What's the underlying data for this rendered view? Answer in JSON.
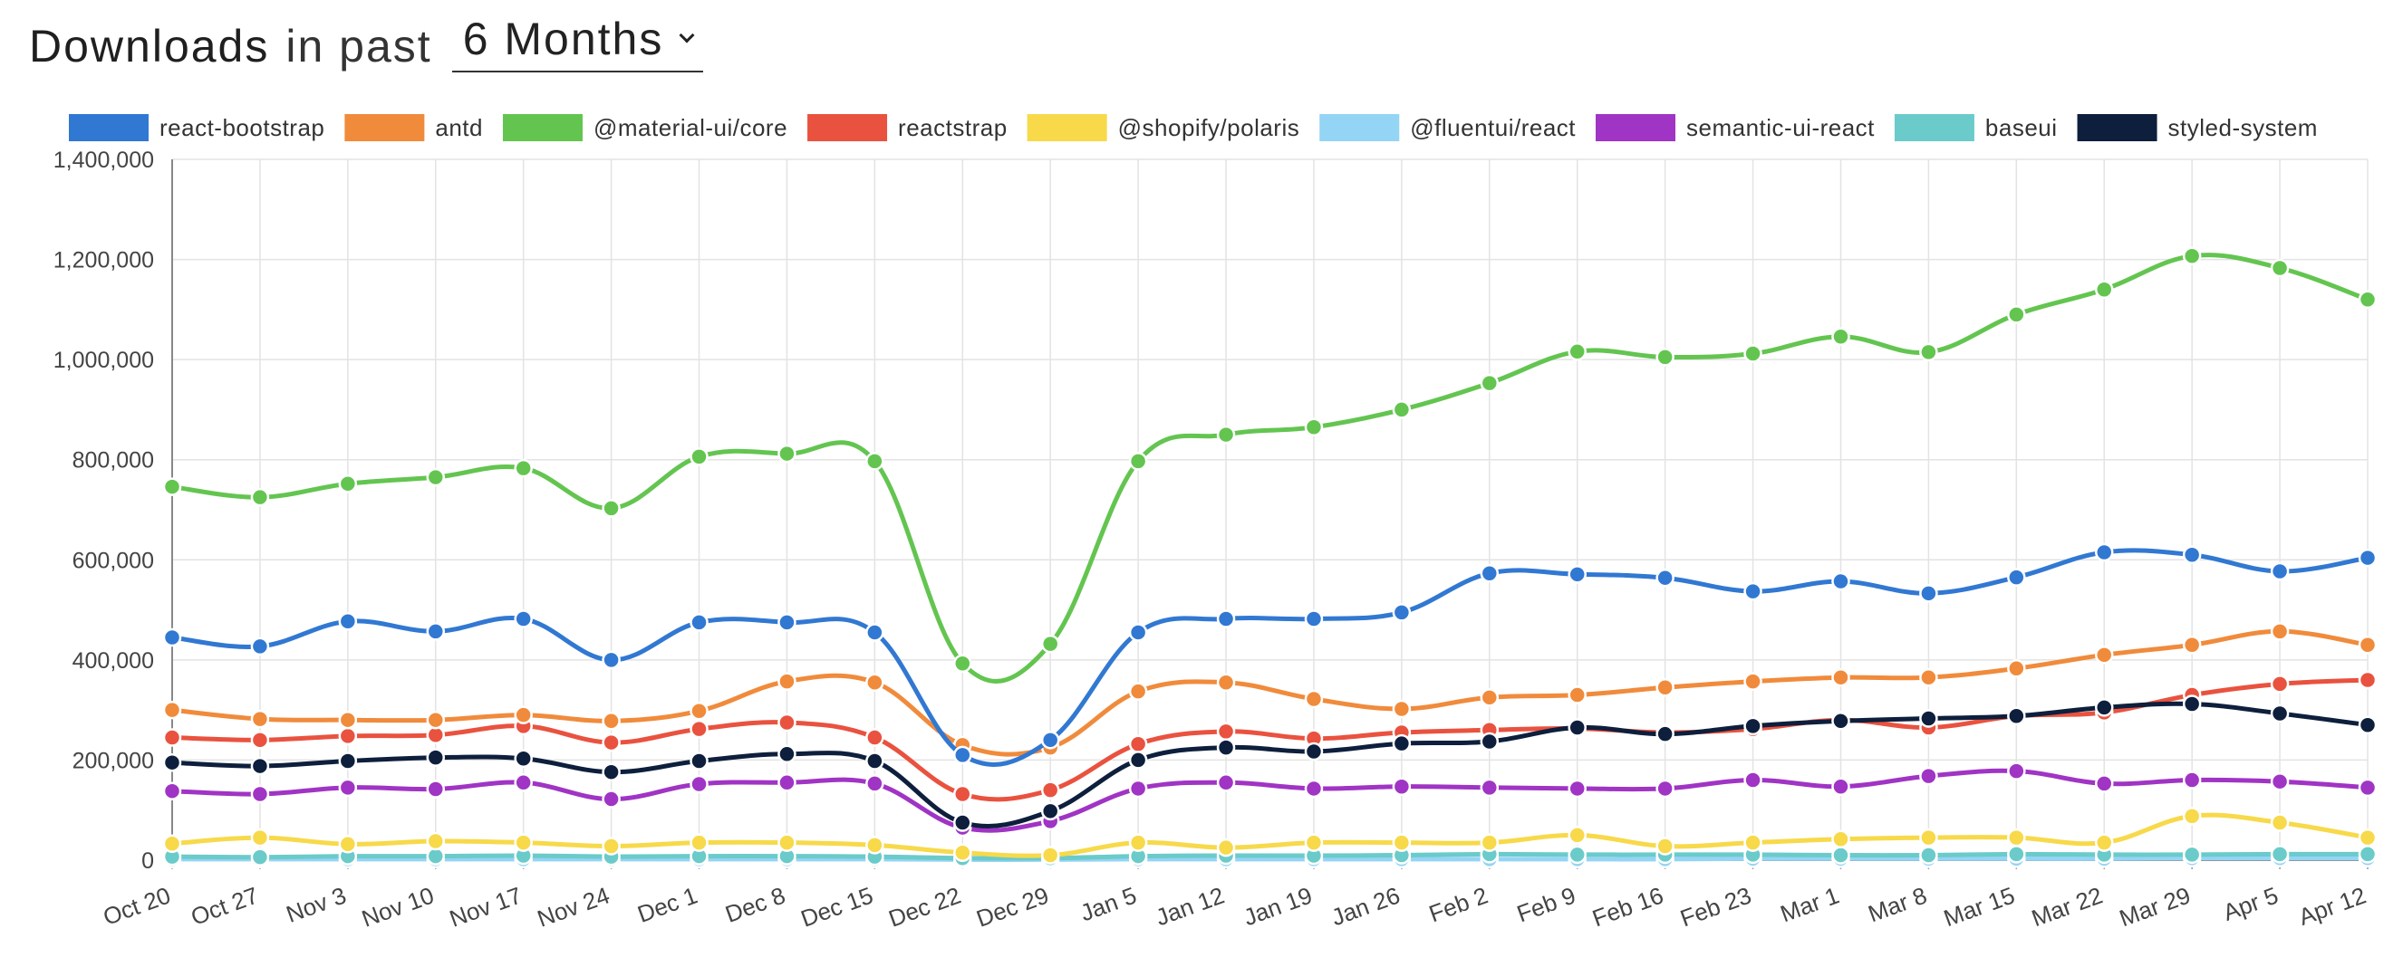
{
  "header": {
    "title_strong": "Downloads",
    "title_light": "in past",
    "period_value": "6 Months"
  },
  "chart_data": {
    "type": "line",
    "title": "Downloads in past 6 Months",
    "xlabel": "",
    "ylabel": "",
    "ylim": [
      0,
      1400000
    ],
    "yticks": [
      0,
      200000,
      400000,
      600000,
      800000,
      1000000,
      1200000,
      1400000
    ],
    "ytick_labels": [
      "0",
      "200,000",
      "400,000",
      "600,000",
      "800,000",
      "1,000,000",
      "1,200,000",
      "1,400,000"
    ],
    "grid": true,
    "legend_position": "top",
    "categories": [
      "Oct 20",
      "Oct 27",
      "Nov 3",
      "Nov 10",
      "Nov 17",
      "Nov 24",
      "Dec 1",
      "Dec 8",
      "Dec 15",
      "Dec 22",
      "Dec 29",
      "Jan 5",
      "Jan 12",
      "Jan 19",
      "Jan 26",
      "Feb 2",
      "Feb 9",
      "Feb 16",
      "Feb 23",
      "Mar 1",
      "Mar 8",
      "Mar 15",
      "Mar 22",
      "Mar 29",
      "Apr 5",
      "Apr 12"
    ],
    "series": [
      {
        "name": "react-bootstrap",
        "color": "#3178d2",
        "values": [
          445000,
          427000,
          477000,
          457000,
          482000,
          400000,
          475000,
          475000,
          455000,
          210000,
          240000,
          455000,
          482000,
          482000,
          495000,
          573000,
          571000,
          564000,
          537000,
          557000,
          533000,
          565000,
          615000,
          610000,
          577000,
          604000
        ]
      },
      {
        "name": "antd",
        "color": "#f08b3c",
        "values": [
          300000,
          282000,
          280000,
          280000,
          290000,
          278000,
          298000,
          357000,
          355000,
          230000,
          225000,
          337000,
          355000,
          322000,
          302000,
          325000,
          330000,
          345000,
          357000,
          365000,
          365000,
          383000,
          410000,
          430000,
          457000,
          430000
        ]
      },
      {
        "name": "@material-ui/core",
        "color": "#63c550",
        "values": [
          746000,
          725000,
          752000,
          765000,
          783000,
          703000,
          806000,
          812000,
          797000,
          393000,
          432000,
          797000,
          850000,
          865000,
          900000,
          953000,
          1016000,
          1005000,
          1012000,
          1046000,
          1015000,
          1090000,
          1140000,
          1207000,
          1183000,
          1120000
        ]
      },
      {
        "name": "reactstrap",
        "color": "#e9523f",
        "values": [
          245000,
          240000,
          248000,
          250000,
          268000,
          235000,
          262000,
          275000,
          245000,
          132000,
          140000,
          232000,
          257000,
          243000,
          255000,
          260000,
          263000,
          255000,
          262000,
          280000,
          265000,
          288000,
          295000,
          330000,
          352000,
          360000
        ]
      },
      {
        "name": "@shopify/polaris",
        "color": "#f7d94a",
        "values": [
          33000,
          45000,
          32000,
          38000,
          35000,
          28000,
          35000,
          35000,
          30000,
          15000,
          10000,
          35000,
          25000,
          35000,
          35000,
          35000,
          50000,
          28000,
          35000,
          42000,
          45000,
          45000,
          35000,
          88000,
          75000,
          45000
        ]
      },
      {
        "name": "@fluentui/react",
        "color": "#94d4f5",
        "values": [
          2000,
          2000,
          2000,
          2000,
          2000,
          2000,
          2000,
          2000,
          2000,
          1000,
          1000,
          2000,
          2000,
          2000,
          2000,
          2000,
          2000,
          2000,
          3000,
          3000,
          3000,
          3000,
          3000,
          4000,
          4000,
          4000
        ]
      },
      {
        "name": "semantic-ui-react",
        "color": "#a034c4",
        "values": [
          138000,
          132000,
          145000,
          142000,
          155000,
          122000,
          152000,
          155000,
          153000,
          65000,
          78000,
          143000,
          155000,
          143000,
          147000,
          145000,
          143000,
          143000,
          160000,
          147000,
          168000,
          178000,
          153000,
          160000,
          157000,
          145000
        ]
      },
      {
        "name": "baseui",
        "color": "#6acbca",
        "values": [
          7000,
          6000,
          8000,
          8000,
          9000,
          7000,
          8000,
          8000,
          7000,
          4000,
          4000,
          8000,
          9000,
          9000,
          10000,
          12000,
          11000,
          11000,
          11000,
          10000,
          10000,
          12000,
          11000,
          11000,
          12000,
          12000
        ]
      },
      {
        "name": "styled-system",
        "color": "#0d1f3c",
        "values": [
          195000,
          188000,
          198000,
          205000,
          203000,
          176000,
          198000,
          212000,
          198000,
          75000,
          98000,
          200000,
          225000,
          217000,
          233000,
          237000,
          265000,
          252000,
          268000,
          278000,
          283000,
          288000,
          305000,
          312000,
          293000,
          270000
        ]
      }
    ]
  }
}
